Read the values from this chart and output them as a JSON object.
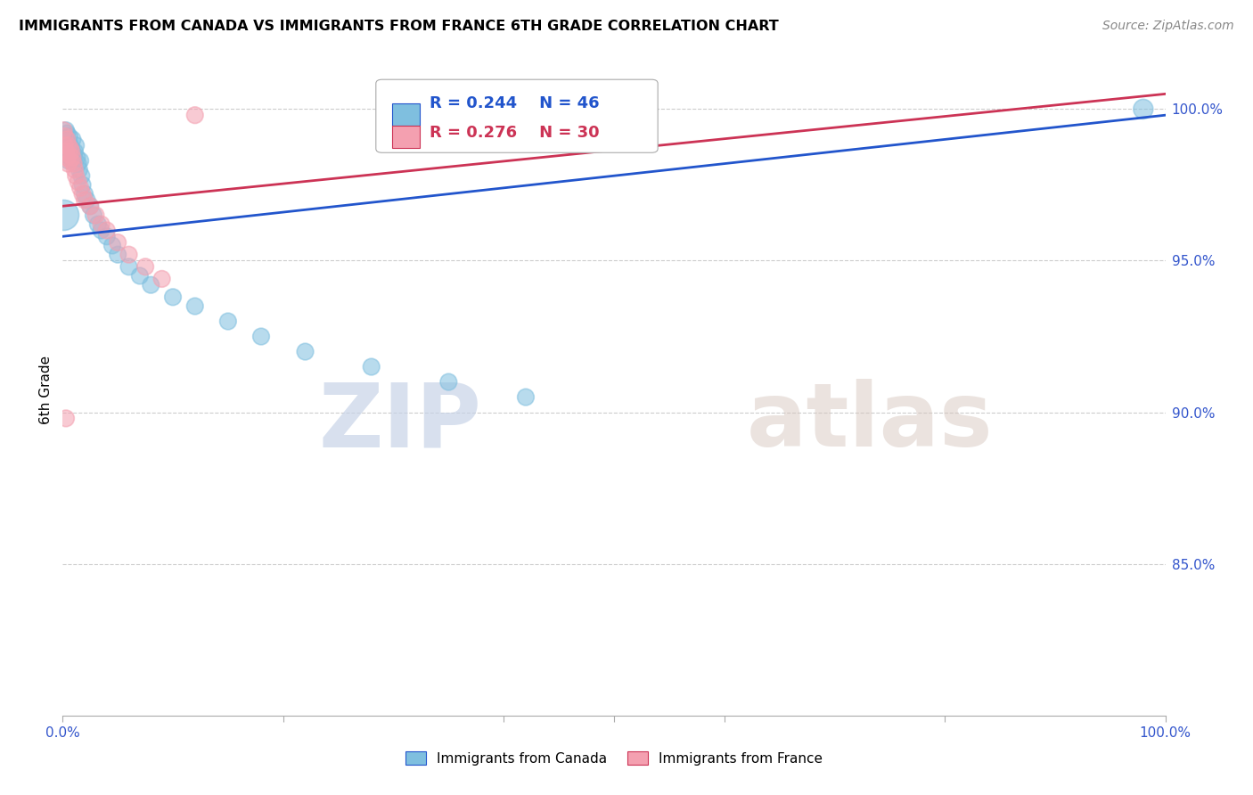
{
  "title": "IMMIGRANTS FROM CANADA VS IMMIGRANTS FROM FRANCE 6TH GRADE CORRELATION CHART",
  "source": "Source: ZipAtlas.com",
  "ylabel": "6th Grade",
  "watermark_zip": "ZIP",
  "watermark_atlas": "atlas",
  "r_canada": 0.244,
  "n_canada": 46,
  "r_france": 0.276,
  "n_france": 30,
  "legend_canada": "Immigrants from Canada",
  "legend_france": "Immigrants from France",
  "color_canada": "#7fbfdf",
  "color_france": "#f4a0b0",
  "trendline_canada": "#2255cc",
  "trendline_france": "#cc3355",
  "right_ytick_labels": [
    "100.0%",
    "95.0%",
    "90.0%",
    "85.0%"
  ],
  "right_ytick_values": [
    1.0,
    0.95,
    0.9,
    0.85
  ],
  "xlim": [
    0.0,
    1.0
  ],
  "ylim": [
    0.8,
    1.015
  ],
  "canada_x": [
    0.001,
    0.002,
    0.003,
    0.003,
    0.004,
    0.004,
    0.005,
    0.005,
    0.006,
    0.006,
    0.007,
    0.007,
    0.008,
    0.009,
    0.01,
    0.01,
    0.011,
    0.012,
    0.013,
    0.014,
    0.015,
    0.016,
    0.017,
    0.018,
    0.02,
    0.022,
    0.025,
    0.028,
    0.032,
    0.035,
    0.04,
    0.045,
    0.05,
    0.06,
    0.07,
    0.08,
    0.1,
    0.12,
    0.15,
    0.18,
    0.22,
    0.28,
    0.35,
    0.42,
    0.001,
    0.98
  ],
  "canada_y": [
    0.99,
    0.985,
    0.993,
    0.988,
    0.986,
    0.992,
    0.989,
    0.983,
    0.991,
    0.986,
    0.988,
    0.984,
    0.987,
    0.99,
    0.985,
    0.983,
    0.986,
    0.988,
    0.984,
    0.982,
    0.98,
    0.983,
    0.978,
    0.975,
    0.972,
    0.97,
    0.968,
    0.965,
    0.962,
    0.96,
    0.958,
    0.955,
    0.952,
    0.948,
    0.945,
    0.942,
    0.938,
    0.935,
    0.93,
    0.925,
    0.92,
    0.915,
    0.91,
    0.905,
    0.965,
    1.0
  ],
  "canada_size": [
    18,
    18,
    18,
    18,
    18,
    18,
    18,
    18,
    18,
    18,
    18,
    18,
    18,
    18,
    18,
    18,
    18,
    18,
    18,
    18,
    18,
    18,
    18,
    18,
    18,
    18,
    18,
    18,
    18,
    18,
    18,
    18,
    18,
    18,
    18,
    18,
    18,
    18,
    18,
    18,
    18,
    18,
    18,
    18,
    60,
    25
  ],
  "france_x": [
    0.001,
    0.002,
    0.002,
    0.003,
    0.004,
    0.004,
    0.005,
    0.005,
    0.006,
    0.007,
    0.007,
    0.008,
    0.009,
    0.01,
    0.011,
    0.012,
    0.014,
    0.016,
    0.018,
    0.02,
    0.025,
    0.03,
    0.035,
    0.04,
    0.05,
    0.06,
    0.075,
    0.09,
    0.003,
    0.12
  ],
  "france_y": [
    0.993,
    0.991,
    0.988,
    0.986,
    0.99,
    0.984,
    0.988,
    0.982,
    0.985,
    0.987,
    0.983,
    0.986,
    0.984,
    0.982,
    0.98,
    0.978,
    0.976,
    0.974,
    0.972,
    0.97,
    0.968,
    0.965,
    0.962,
    0.96,
    0.956,
    0.952,
    0.948,
    0.944,
    0.898,
    0.998
  ],
  "france_size": [
    18,
    18,
    18,
    18,
    18,
    18,
    18,
    18,
    18,
    18,
    18,
    18,
    18,
    18,
    18,
    18,
    18,
    18,
    18,
    18,
    18,
    18,
    18,
    18,
    18,
    18,
    18,
    18,
    18,
    18
  ],
  "trendline_canada_x0": 0.0,
  "trendline_canada_x1": 1.0,
  "trendline_canada_y0": 0.958,
  "trendline_canada_y1": 0.998,
  "trendline_france_x0": 0.0,
  "trendline_france_x1": 1.0,
  "trendline_france_y0": 0.968,
  "trendline_france_y1": 1.005
}
